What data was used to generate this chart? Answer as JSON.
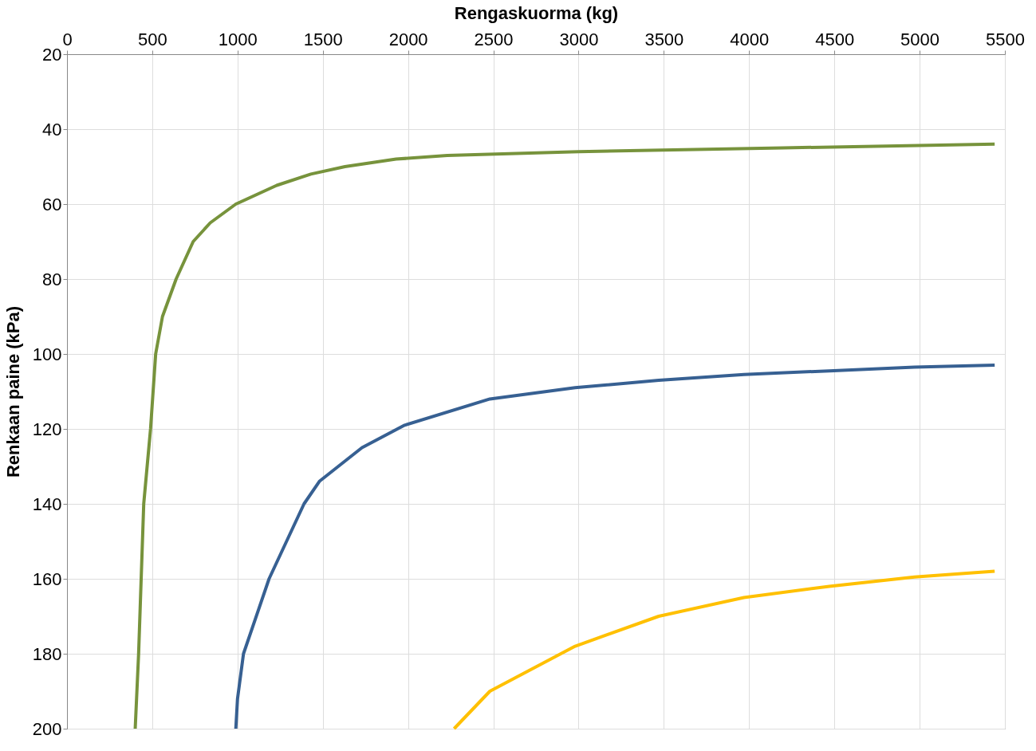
{
  "chart_data": {
    "type": "line",
    "xlabel": "Rengaskuorma (kg)",
    "ylabel": "Renkaan paine  (kPa)",
    "xlim": [
      0,
      5500
    ],
    "ylim": [
      200,
      20
    ],
    "xticks": [
      0,
      500,
      1000,
      1500,
      2000,
      2500,
      3000,
      3500,
      4000,
      4500,
      5000,
      5500
    ],
    "yticks": [
      20,
      40,
      60,
      80,
      100,
      120,
      140,
      160,
      180,
      200
    ],
    "grid": true,
    "legend": false,
    "line_style": "solid",
    "marker": "none",
    "series": [
      {
        "color": "#77933c",
        "x": [
          400,
          420,
          450,
          490,
          520,
          560,
          640,
          740,
          840,
          990,
          1230,
          1430,
          1630,
          1930,
          2230,
          3000,
          4200,
          5440
        ],
        "values": [
          200,
          180,
          140,
          120,
          100,
          90,
          80,
          70,
          65,
          60,
          55,
          52,
          50,
          48,
          47,
          46,
          45,
          44
        ]
      },
      {
        "color": "#376092",
        "x": [
          990,
          1000,
          1035,
          1185,
          1390,
          1480,
          1730,
          1980,
          2480,
          2980,
          3470,
          3970,
          4470,
          4970,
          5440
        ],
        "values": [
          200,
          192,
          180,
          160,
          140,
          134,
          125,
          119,
          112,
          109,
          107,
          105.5,
          104.5,
          103.5,
          103
        ]
      },
      {
        "color": "#ffc000",
        "x": [
          2270,
          2480,
          2980,
          3470,
          3970,
          4470,
          4970,
          5440
        ],
        "values": [
          200,
          190,
          178,
          170,
          165,
          162,
          159.5,
          158
        ]
      }
    ]
  }
}
